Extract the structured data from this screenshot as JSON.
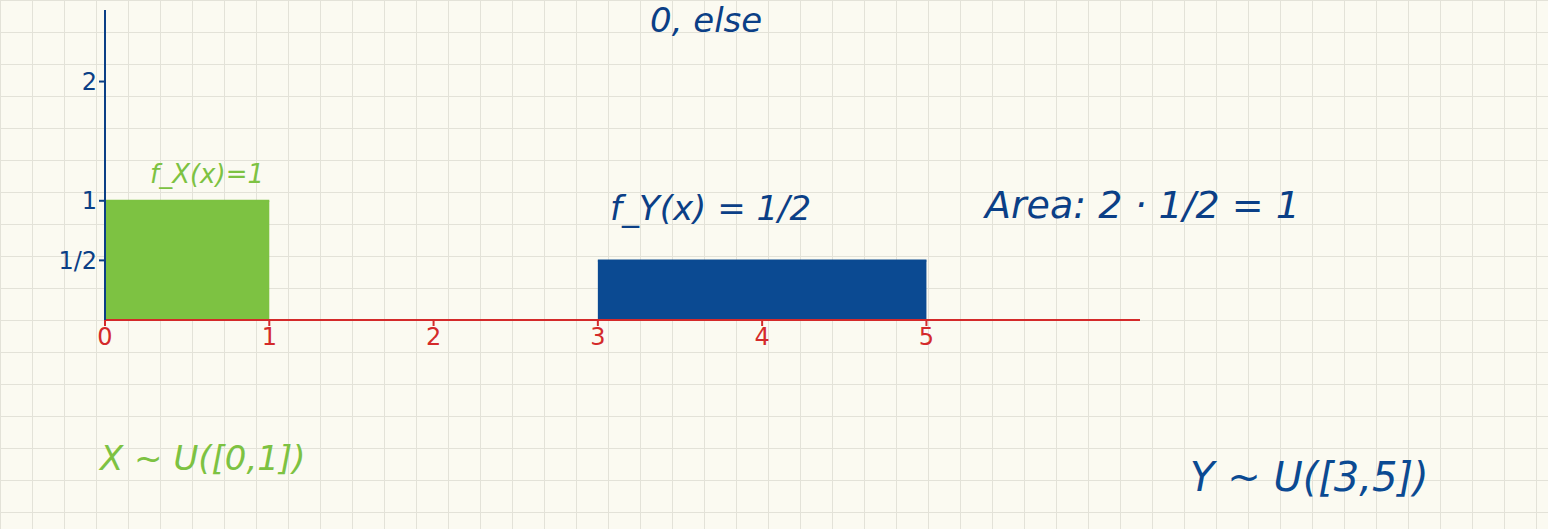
{
  "chart_data": {
    "type": "area",
    "series": [
      {
        "name": "X ~ U([0,1])",
        "color": "#7dc242",
        "x": [
          0,
          1
        ],
        "values": [
          1,
          1
        ]
      },
      {
        "name": "Y ~ U([3,5])",
        "color": "#0b4a92",
        "x": [
          3,
          5
        ],
        "values": [
          0.5,
          0.5
        ]
      }
    ],
    "xlim": [
      0,
      6.3
    ],
    "ylim": [
      0,
      2.6
    ],
    "xticks": [
      0,
      1,
      2,
      3,
      4,
      5
    ],
    "yticks": [
      {
        "value": 0.5,
        "label": "1/2"
      },
      1,
      2
    ],
    "annotations": [
      "0,   else",
      "f_X(x)=1",
      "f_Y(x) = 1/2",
      "Area: 2 · 1/2 = 1"
    ]
  }
}
